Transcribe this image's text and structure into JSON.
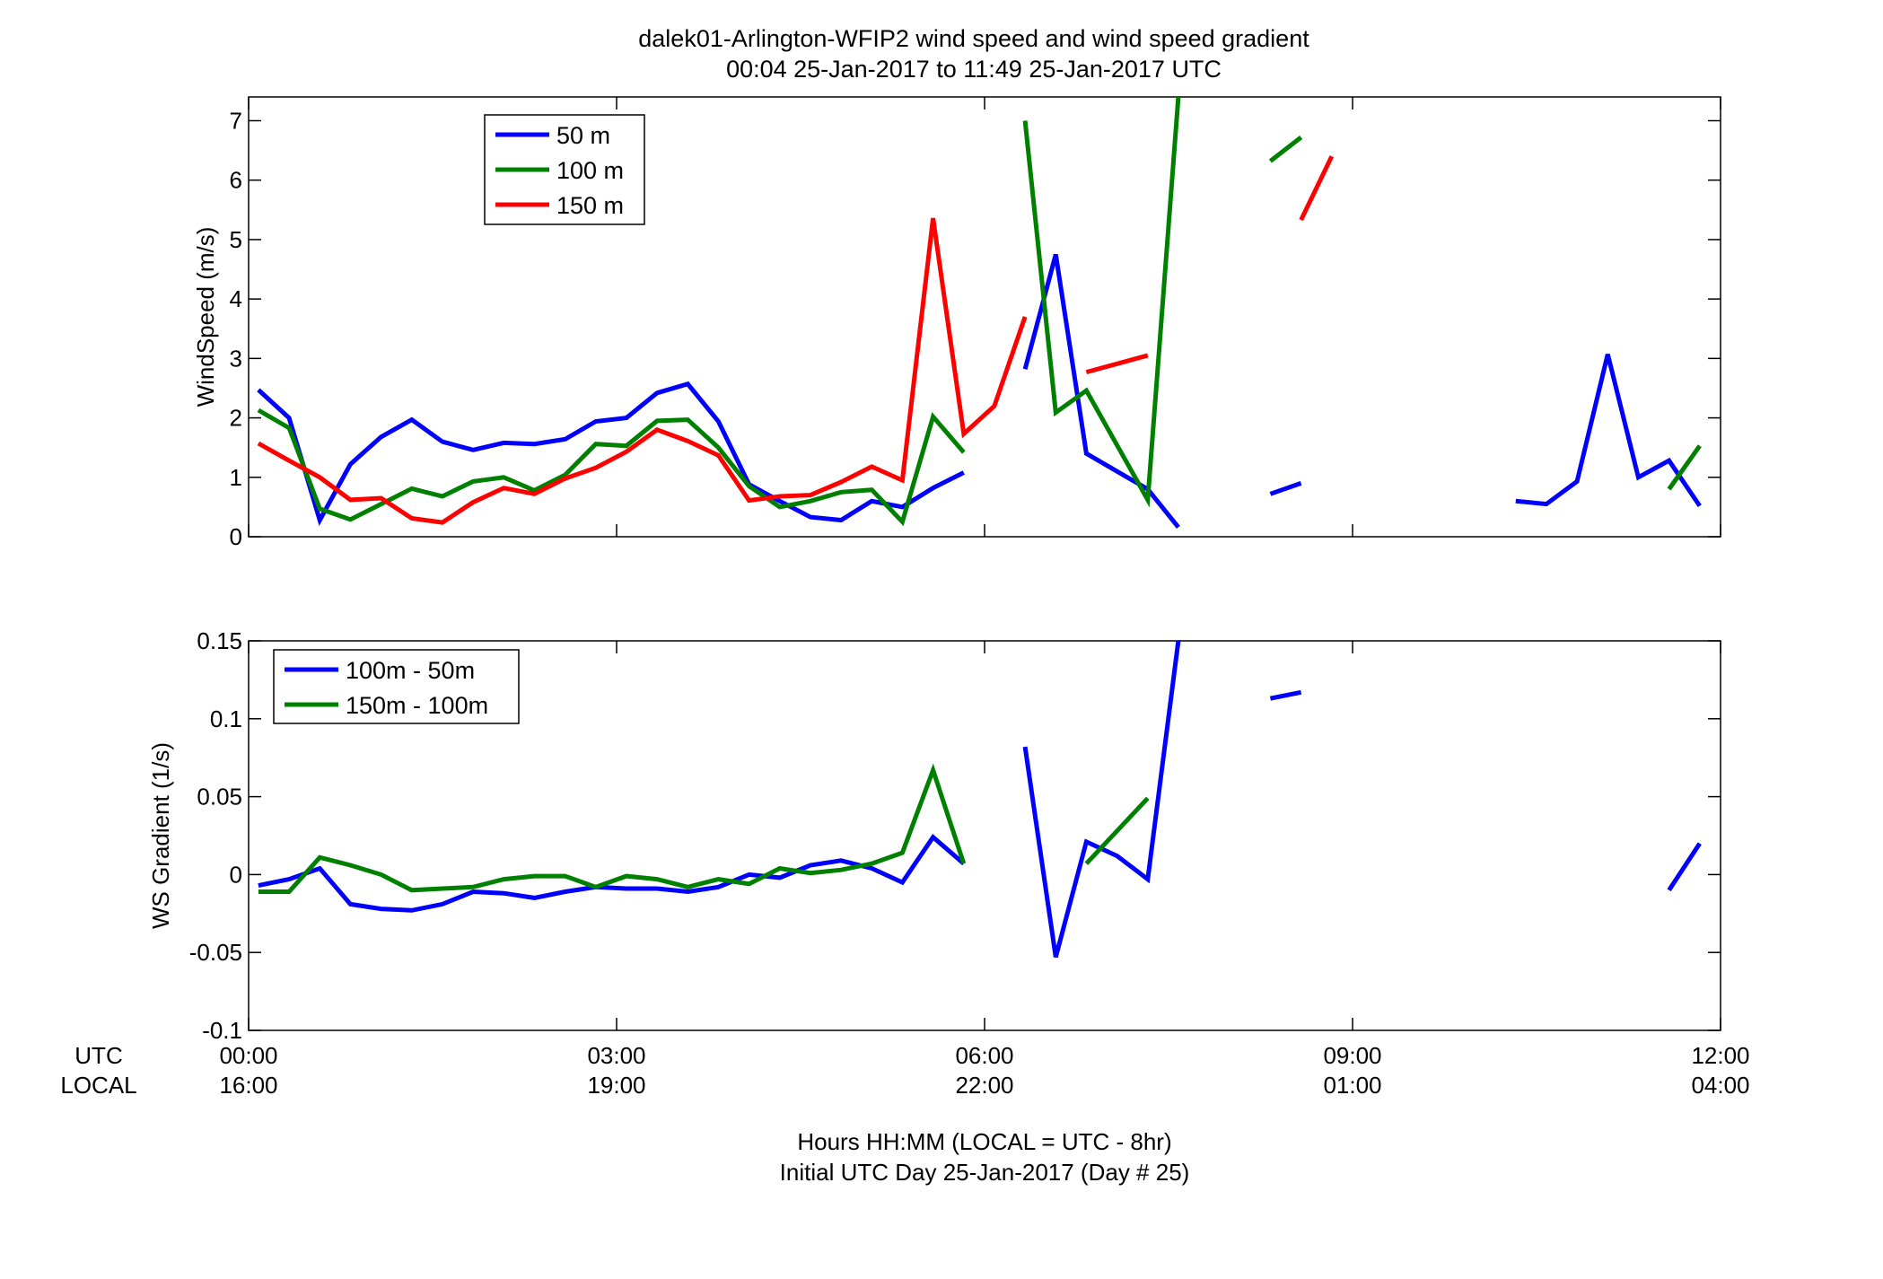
{
  "figure": {
    "title_line1": "dalek01-Arlington-WFIP2  wind speed and wind speed gradient",
    "title_line2": "00:04 25-Jan-2017 to 11:49 25-Jan-2017  UTC",
    "xlabel_line1": "Hours HH:MM  (LOCAL = UTC - 8hr)",
    "xlabel_line2": "Initial UTC Day 25-Jan-2017 (Day # 25)",
    "utc_row_label": "UTC",
    "local_row_label": "LOCAL"
  },
  "chart_data": [
    {
      "type": "line",
      "title": "",
      "ylabel": "WindSpeed (m/s)",
      "xlim": [
        0,
        12
      ],
      "ylim": [
        0,
        7.4
      ],
      "yticks": [
        0,
        1,
        2,
        3,
        4,
        5,
        6,
        7
      ],
      "ytick_labels": [
        "0",
        "1",
        "2",
        "3",
        "4",
        "5",
        "6",
        "7"
      ],
      "xticks": [
        0,
        3,
        6,
        9,
        12
      ],
      "xtick_labels_utc": [
        "00:00",
        "03:00",
        "06:00",
        "09:00",
        "12:00"
      ],
      "xtick_labels_local": [
        "16:00",
        "19:00",
        "22:00",
        "01:00",
        "04:00"
      ],
      "legend_position": "top-left",
      "series": [
        {
          "name": "50 m",
          "color": "#0000ff",
          "segments": [
            [
              [
                0.08,
                2.47
              ],
              [
                0.33,
                2.0
              ],
              [
                0.58,
                0.28
              ],
              [
                0.83,
                1.22
              ],
              [
                1.08,
                1.68
              ],
              [
                1.33,
                1.97
              ],
              [
                1.58,
                1.6
              ],
              [
                1.83,
                1.46
              ],
              [
                2.08,
                1.58
              ],
              [
                2.33,
                1.56
              ],
              [
                2.58,
                1.64
              ],
              [
                2.83,
                1.94
              ],
              [
                3.08,
                2.0
              ],
              [
                3.33,
                2.42
              ],
              [
                3.58,
                2.57
              ],
              [
                3.83,
                1.94
              ],
              [
                4.08,
                0.88
              ],
              [
                4.33,
                0.6
              ],
              [
                4.58,
                0.33
              ],
              [
                4.83,
                0.28
              ],
              [
                5.08,
                0.6
              ],
              [
                5.33,
                0.5
              ],
              [
                5.58,
                0.82
              ],
              [
                5.83,
                1.08
              ]
            ],
            [
              [
                6.33,
                2.82
              ],
              [
                6.58,
                4.75
              ],
              [
                6.83,
                1.4
              ],
              [
                7.08,
                1.1
              ],
              [
                7.33,
                0.8
              ],
              [
                7.58,
                0.16
              ]
            ],
            [
              [
                8.33,
                0.72
              ],
              [
                8.58,
                0.9
              ]
            ],
            [
              [
                10.33,
                0.6
              ],
              [
                10.58,
                0.55
              ],
              [
                10.83,
                0.93
              ],
              [
                11.08,
                3.07
              ],
              [
                11.33,
                1.0
              ],
              [
                11.58,
                1.28
              ],
              [
                11.83,
                0.52
              ]
            ]
          ]
        },
        {
          "name": "100 m",
          "color": "#008000",
          "segments": [
            [
              [
                0.08,
                2.13
              ],
              [
                0.33,
                1.83
              ],
              [
                0.58,
                0.47
              ],
              [
                0.83,
                0.29
              ],
              [
                1.08,
                0.55
              ],
              [
                1.33,
                0.81
              ],
              [
                1.58,
                0.68
              ],
              [
                1.83,
                0.93
              ],
              [
                2.08,
                1.0
              ],
              [
                2.33,
                0.78
              ],
              [
                2.58,
                1.04
              ],
              [
                2.83,
                1.56
              ],
              [
                3.08,
                1.53
              ],
              [
                3.33,
                1.95
              ],
              [
                3.58,
                1.97
              ],
              [
                3.83,
                1.5
              ],
              [
                4.08,
                0.85
              ],
              [
                4.33,
                0.5
              ],
              [
                4.58,
                0.6
              ],
              [
                4.83,
                0.75
              ],
              [
                5.08,
                0.79
              ],
              [
                5.33,
                0.25
              ],
              [
                5.58,
                2.02
              ],
              [
                5.83,
                1.42
              ]
            ],
            [
              [
                6.33,
                7.0
              ],
              [
                6.58,
                2.09
              ],
              [
                6.83,
                2.46
              ],
              [
                7.33,
                0.62
              ],
              [
                7.58,
                7.4
              ]
            ],
            [
              [
                8.33,
                6.32
              ],
              [
                8.58,
                6.72
              ]
            ],
            [
              [
                11.58,
                0.8
              ],
              [
                11.83,
                1.53
              ]
            ]
          ]
        },
        {
          "name": "150 m",
          "color": "#ff0000",
          "segments": [
            [
              [
                0.08,
                1.57
              ],
              [
                0.33,
                1.28
              ],
              [
                0.58,
                1.0
              ],
              [
                0.83,
                0.62
              ],
              [
                1.08,
                0.65
              ],
              [
                1.33,
                0.31
              ],
              [
                1.58,
                0.24
              ],
              [
                1.83,
                0.58
              ],
              [
                2.08,
                0.82
              ],
              [
                2.33,
                0.72
              ],
              [
                2.58,
                0.98
              ],
              [
                2.83,
                1.16
              ],
              [
                3.08,
                1.43
              ],
              [
                3.33,
                1.8
              ],
              [
                3.58,
                1.61
              ],
              [
                3.83,
                1.37
              ],
              [
                4.08,
                0.61
              ],
              [
                4.33,
                0.68
              ],
              [
                4.58,
                0.7
              ],
              [
                4.83,
                0.92
              ],
              [
                5.08,
                1.18
              ],
              [
                5.33,
                0.95
              ],
              [
                5.58,
                5.36
              ],
              [
                5.83,
                1.73
              ],
              [
                6.08,
                2.2
              ],
              [
                6.33,
                3.7
              ]
            ],
            [
              [
                6.83,
                2.77
              ],
              [
                7.33,
                3.05
              ]
            ],
            [
              [
                8.58,
                5.33
              ],
              [
                8.83,
                6.4
              ]
            ]
          ]
        }
      ]
    },
    {
      "type": "line",
      "title": "",
      "ylabel": "WS Gradient (1/s)",
      "xlim": [
        0,
        12
      ],
      "ylim": [
        -0.1,
        0.15
      ],
      "yticks": [
        -0.1,
        -0.05,
        0,
        0.05,
        0.1,
        0.15
      ],
      "ytick_labels": [
        "-0.1",
        "-0.05",
        "0",
        "0.05",
        "0.1",
        "0.15"
      ],
      "xticks": [
        0,
        3,
        6,
        9,
        12
      ],
      "xtick_labels_utc": [
        "00:00",
        "03:00",
        "06:00",
        "09:00",
        "12:00"
      ],
      "xtick_labels_local": [
        "16:00",
        "19:00",
        "22:00",
        "01:00",
        "04:00"
      ],
      "legend_position": "top-left",
      "series": [
        {
          "name": "100m - 50m",
          "color": "#0000ff",
          "segments": [
            [
              [
                0.08,
                -0.007
              ],
              [
                0.33,
                -0.003
              ],
              [
                0.58,
                0.004
              ],
              [
                0.83,
                -0.019
              ],
              [
                1.08,
                -0.022
              ],
              [
                1.33,
                -0.023
              ],
              [
                1.58,
                -0.019
              ],
              [
                1.83,
                -0.011
              ],
              [
                2.08,
                -0.012
              ],
              [
                2.33,
                -0.015
              ],
              [
                2.58,
                -0.011
              ],
              [
                2.83,
                -0.008
              ],
              [
                3.08,
                -0.009
              ],
              [
                3.33,
                -0.009
              ],
              [
                3.58,
                -0.011
              ],
              [
                3.83,
                -0.008
              ],
              [
                4.08,
                0.0
              ],
              [
                4.33,
                -0.002
              ],
              [
                4.58,
                0.006
              ],
              [
                4.83,
                0.009
              ],
              [
                5.08,
                0.004
              ],
              [
                5.33,
                -0.005
              ],
              [
                5.58,
                0.024
              ],
              [
                5.83,
                0.007
              ]
            ],
            [
              [
                6.33,
                0.082
              ],
              [
                6.58,
                -0.053
              ],
              [
                6.83,
                0.021
              ],
              [
                7.08,
                0.012
              ],
              [
                7.33,
                -0.003
              ],
              [
                7.58,
                0.15
              ]
            ],
            [
              [
                8.33,
                0.113
              ],
              [
                8.58,
                0.117
              ]
            ],
            [
              [
                11.58,
                -0.01
              ],
              [
                11.83,
                0.02
              ]
            ]
          ]
        },
        {
          "name": "150m - 100m",
          "color": "#008000",
          "segments": [
            [
              [
                0.08,
                -0.011
              ],
              [
                0.33,
                -0.011
              ],
              [
                0.58,
                0.011
              ],
              [
                0.83,
                0.006
              ],
              [
                1.08,
                0.0
              ],
              [
                1.33,
                -0.01
              ],
              [
                1.58,
                -0.009
              ],
              [
                1.83,
                -0.008
              ],
              [
                2.08,
                -0.003
              ],
              [
                2.33,
                -0.001
              ],
              [
                2.58,
                -0.001
              ],
              [
                2.83,
                -0.008
              ],
              [
                3.08,
                -0.001
              ],
              [
                3.33,
                -0.003
              ],
              [
                3.58,
                -0.008
              ],
              [
                3.83,
                -0.003
              ],
              [
                4.08,
                -0.006
              ],
              [
                4.33,
                0.004
              ],
              [
                4.58,
                0.001
              ],
              [
                4.83,
                0.003
              ],
              [
                5.08,
                0.007
              ],
              [
                5.33,
                0.014
              ],
              [
                5.58,
                0.067
              ],
              [
                5.83,
                0.007
              ]
            ],
            [
              [
                6.83,
                0.007
              ],
              [
                7.33,
                0.049
              ]
            ]
          ]
        }
      ]
    }
  ]
}
